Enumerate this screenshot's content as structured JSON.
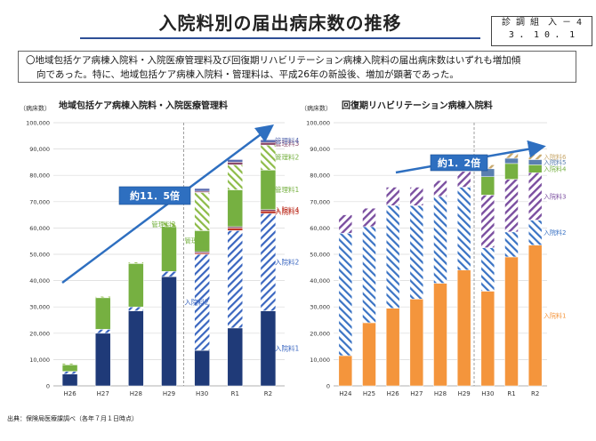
{
  "title": "入院料別の届出病床数の推移",
  "ref": {
    "line1": "診 調 組　入 － 4",
    "line2": "3 ． 1 0 ． 1"
  },
  "summary": {
    "line1": "〇地域包括ケア病棟入院料・入院医療管理料及び回復期リハビリテーション病棟入院料の届出病床数はいずれも増加傾",
    "line2": "向であった。特に、地域包括ケア病棟入院料・管理料は、平成26年の新設後、増加が顕著であった。"
  },
  "source": "出典：保険局医療課調べ（各年７月１日時点）",
  "colors": {
    "nyuin1_left": "#1f3a78",
    "nyuin2_left": "#3a66c0",
    "nyuin3_left": "#c0392b",
    "nyuin4_left": "#6b2b55",
    "kanri1": "#76b041",
    "kanri2": "#8dbb47",
    "kanri3": "#8b4a6b",
    "kanri4": "#5a6bb0",
    "nyuin1_right": "#f4953c",
    "nyuin2_right": "#3a73c4",
    "nyuin3_right": "#7b4fa0",
    "nyuin4_right": "#76b041",
    "nyuin5_right": "#5a7fb0",
    "nyuin6_right": "#c9a96e",
    "arrow": "#2e6fc0",
    "callout": "#2e6fc0"
  },
  "chart_data": [
    {
      "type": "bar",
      "title": "地域包括ケア病棟入院料・入院医療管理料",
      "ylabel": "（病床数）",
      "ylim": [
        0,
        100000
      ],
      "yticks": [
        0,
        10000,
        20000,
        30000,
        40000,
        50000,
        60000,
        70000,
        80000,
        90000,
        100000
      ],
      "ytick_labels": [
        "0",
        "10,000",
        "20,000",
        "30,000",
        "40,000",
        "50,000",
        "60,000",
        "70,000",
        "80,000",
        "90,000",
        "100,000"
      ],
      "categories": [
        "H26",
        "H27",
        "H28",
        "H29",
        "H30",
        "R1",
        "R2"
      ],
      "annotation": "約11．5倍",
      "series": [
        {
          "name": "入院料1",
          "values": [
            4500,
            20000,
            28500,
            41500,
            13500,
            22000,
            28500
          ]
        },
        {
          "name": "入院料2",
          "values": [
            1000,
            1500,
            1500,
            2000,
            36500,
            37000,
            37000
          ]
        },
        {
          "name": "入院料3",
          "values": [
            0,
            0,
            0,
            0,
            500,
            1000,
            1000
          ]
        },
        {
          "name": "入院料4",
          "values": [
            0,
            0,
            0,
            0,
            500,
            500,
            500
          ]
        },
        {
          "name": "管理料1",
          "values": [
            2500,
            12000,
            16500,
            17000,
            8000,
            14000,
            15000
          ]
        },
        {
          "name": "管理料2",
          "values": [
            500,
            500,
            500,
            1500,
            14500,
            9500,
            9500
          ]
        },
        {
          "name": "管理料3",
          "values": [
            0,
            0,
            0,
            0,
            500,
            1000,
            1000
          ]
        },
        {
          "name": "管理料4",
          "values": [
            0,
            0,
            0,
            0,
            1000,
            1000,
            1000
          ]
        }
      ],
      "segment_labels": [
        {
          "text": "入院料1",
          "series": 0,
          "category": 6
        },
        {
          "text": "入院料2",
          "series": 1,
          "category": 4
        },
        {
          "text": "入院料2",
          "series": 1,
          "category": 6
        },
        {
          "text": "入院料3",
          "series": 2,
          "category": 6
        },
        {
          "text": "入院料4",
          "series": 3,
          "category": 6
        },
        {
          "text": "管理料1",
          "series": 4,
          "category": 4
        },
        {
          "text": "管理料1",
          "series": 4,
          "category": 6
        },
        {
          "text": "管理料2",
          "series": 5,
          "category": 3
        },
        {
          "text": "管理料2",
          "series": 5,
          "category": 6
        },
        {
          "text": "管理料3",
          "series": 6,
          "category": 6
        },
        {
          "text": "管理料4",
          "series": 7,
          "category": 6
        }
      ]
    },
    {
      "type": "bar",
      "title": "回復期リハビリテーション病棟入院料",
      "ylabel": "（病床数）",
      "ylim": [
        0,
        100000
      ],
      "yticks": [
        0,
        10000,
        20000,
        30000,
        40000,
        50000,
        60000,
        70000,
        80000,
        90000,
        100000
      ],
      "ytick_labels": [
        "0",
        "10,000",
        "20,000",
        "30,000",
        "40,000",
        "50,000",
        "60,000",
        "70,000",
        "80,000",
        "90,000",
        "100,000"
      ],
      "categories": [
        "H24",
        "H25",
        "H26",
        "H27",
        "H28",
        "H29",
        "H30",
        "R1",
        "R2"
      ],
      "annotation": "約1．2倍",
      "series": [
        {
          "name": "入院料1",
          "values": [
            11500,
            24000,
            29500,
            33000,
            39000,
            44000,
            36000,
            49000,
            53500
          ]
        },
        {
          "name": "入院料2",
          "values": [
            46500,
            36500,
            39000,
            35500,
            33000,
            31500,
            16500,
            9500,
            9500
          ]
        },
        {
          "name": "入院料3",
          "values": [
            7000,
            7000,
            7000,
            7000,
            6000,
            6000,
            20000,
            20000,
            18000
          ]
        },
        {
          "name": "入院料4",
          "values": [
            0,
            0,
            0,
            0,
            0,
            0,
            7000,
            6000,
            3000
          ]
        },
        {
          "name": "入院料5",
          "values": [
            0,
            0,
            0,
            0,
            0,
            0,
            3000,
            2000,
            2000
          ]
        },
        {
          "name": "入院料6",
          "values": [
            0,
            0,
            0,
            0,
            0,
            0,
            1500,
            2000,
            2000
          ]
        }
      ],
      "segment_labels": [
        {
          "text": "入院料1",
          "series": 0,
          "category": 8
        },
        {
          "text": "入院料2",
          "series": 1,
          "category": 8
        },
        {
          "text": "入院料3",
          "series": 2,
          "category": 8
        },
        {
          "text": "入院料4",
          "series": 3,
          "category": 8
        },
        {
          "text": "入院料5",
          "series": 4,
          "category": 8
        },
        {
          "text": "入院料6",
          "series": 5,
          "category": 8
        }
      ]
    }
  ]
}
